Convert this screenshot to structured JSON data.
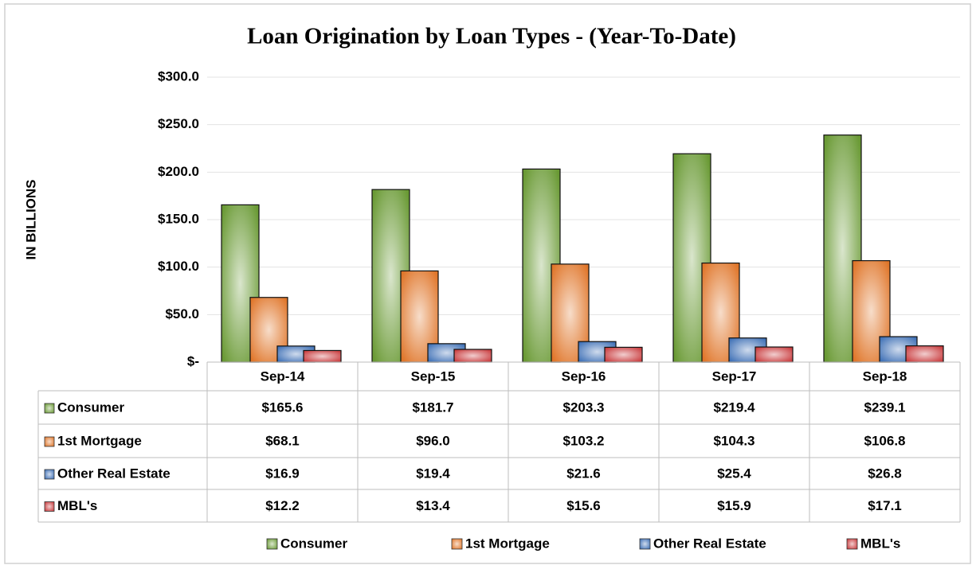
{
  "chart_data": {
    "type": "bar",
    "title": "Loan Origination by Loan Types - (Year-To-Date)",
    "y_label": "IN BILLIONS",
    "categories": [
      "Sep-14",
      "Sep-15",
      "Sep-16",
      "Sep-17",
      "Sep-18"
    ],
    "series": [
      {
        "name": "Consumer",
        "color": "#6a9a35",
        "values": [
          165.6,
          181.7,
          203.3,
          219.4,
          239.1
        ],
        "value_labels": [
          "$165.6",
          "$181.7",
          "$203.3",
          "$219.4",
          "$239.1"
        ]
      },
      {
        "name": "1st Mortgage",
        "color": "#e0762a",
        "values": [
          68.1,
          96.0,
          103.2,
          104.3,
          106.8
        ],
        "value_labels": [
          "$68.1",
          "$96.0",
          "$103.2",
          "$104.3",
          "$106.8"
        ]
      },
      {
        "name": "Other Real Estate",
        "color": "#3d6fb5",
        "values": [
          16.9,
          19.4,
          21.6,
          25.4,
          26.8
        ],
        "value_labels": [
          "$16.9",
          "$19.4",
          "$21.6",
          "$25.4",
          "$26.8"
        ]
      },
      {
        "name": "MBL's",
        "color": "#c8383a",
        "values": [
          12.2,
          13.4,
          15.6,
          15.9,
          17.1
        ],
        "value_labels": [
          "$12.2",
          "$13.4",
          "$15.6",
          "$15.9",
          "$17.1"
        ]
      }
    ],
    "ylim": [
      0,
      300
    ],
    "yticks": [
      {
        "value": 0,
        "label": "$-"
      },
      {
        "value": 50,
        "label": "$50.0"
      },
      {
        "value": 100,
        "label": "$100.0"
      },
      {
        "value": 150,
        "label": "$150.0"
      },
      {
        "value": 200,
        "label": "$200.0"
      },
      {
        "value": 250,
        "label": "$250.0"
      },
      {
        "value": 300,
        "label": "$300.0"
      }
    ],
    "grid": true,
    "legend": "bottom"
  }
}
